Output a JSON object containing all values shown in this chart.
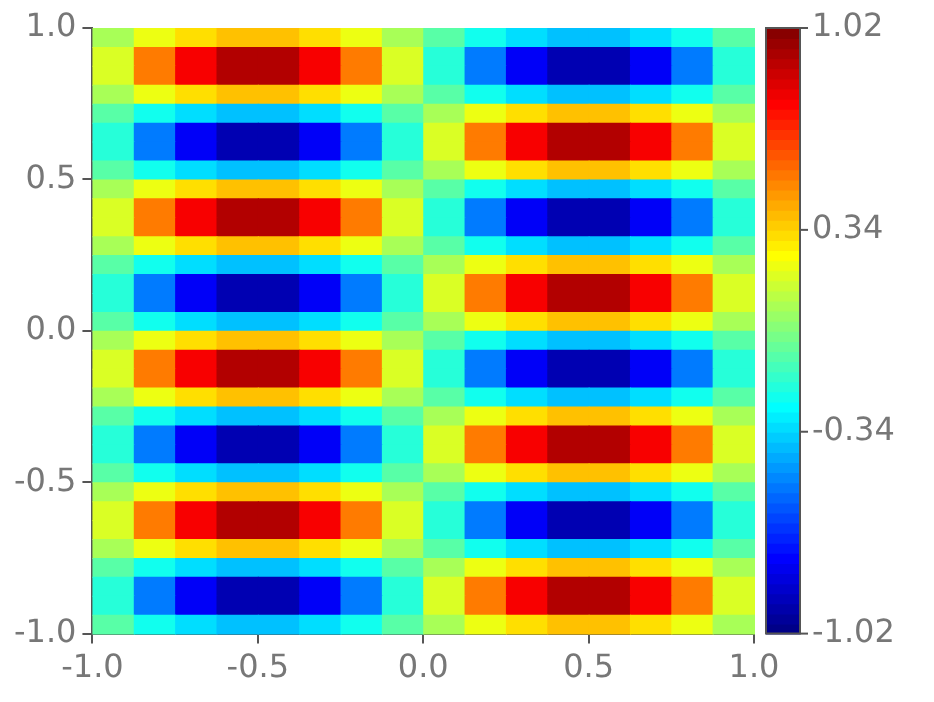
{
  "chart_data": {
    "type": "heatmap",
    "xlim": [
      -1,
      1
    ],
    "ylim": [
      -1,
      1
    ],
    "xticks": [
      {
        "value": -1,
        "label": "-1.0"
      },
      {
        "value": -0.5,
        "label": "-0.5"
      },
      {
        "value": 0,
        "label": "0.0"
      },
      {
        "value": 0.5,
        "label": "0.5"
      },
      {
        "value": 1,
        "label": "1.0"
      }
    ],
    "yticks": [
      {
        "value": -1,
        "label": "-1.0"
      },
      {
        "value": -0.5,
        "label": "-0.5"
      },
      {
        "value": 0,
        "label": "0.0"
      },
      {
        "value": 0.5,
        "label": "0.5"
      },
      {
        "value": 1,
        "label": "1.0"
      }
    ],
    "clim": [
      -1.02,
      1.02
    ],
    "cticks": [
      -1.02,
      -0.34,
      0.34,
      1.02
    ],
    "grid": false,
    "cells": [
      [
        0.08,
        0.22,
        0.32,
        0.38,
        0.38,
        0.32,
        0.22,
        0.08,
        -0.08,
        -0.22,
        -0.32,
        -0.38,
        -0.38,
        -0.32,
        -0.22,
        -0.08
      ],
      [
        0.18,
        0.52,
        0.78,
        0.92,
        0.92,
        0.78,
        0.52,
        0.18,
        -0.18,
        -0.52,
        -0.78,
        -0.92,
        -0.92,
        -0.78,
        -0.52,
        -0.18
      ],
      [
        0.18,
        0.52,
        0.78,
        0.92,
        0.92,
        0.78,
        0.52,
        0.18,
        -0.18,
        -0.52,
        -0.78,
        -0.92,
        -0.92,
        -0.78,
        -0.52,
        -0.18
      ],
      [
        0.08,
        0.22,
        0.32,
        0.38,
        0.38,
        0.32,
        0.22,
        0.08,
        -0.08,
        -0.22,
        -0.32,
        -0.38,
        -0.38,
        -0.32,
        -0.22,
        -0.08
      ],
      [
        -0.08,
        -0.22,
        -0.32,
        -0.38,
        -0.38,
        -0.32,
        -0.22,
        -0.08,
        0.08,
        0.22,
        0.32,
        0.38,
        0.38,
        0.32,
        0.22,
        0.08
      ],
      [
        -0.18,
        -0.52,
        -0.78,
        -0.92,
        -0.92,
        -0.78,
        -0.52,
        -0.18,
        0.18,
        0.52,
        0.78,
        0.92,
        0.92,
        0.78,
        0.52,
        0.18
      ],
      [
        -0.18,
        -0.52,
        -0.78,
        -0.92,
        -0.92,
        -0.78,
        -0.52,
        -0.18,
        0.18,
        0.52,
        0.78,
        0.92,
        0.92,
        0.78,
        0.52,
        0.18
      ],
      [
        -0.08,
        -0.22,
        -0.32,
        -0.38,
        -0.38,
        -0.32,
        -0.22,
        -0.08,
        0.08,
        0.22,
        0.32,
        0.38,
        0.38,
        0.32,
        0.22,
        0.08
      ],
      [
        0.08,
        0.22,
        0.32,
        0.38,
        0.38,
        0.32,
        0.22,
        0.08,
        -0.08,
        -0.22,
        -0.32,
        -0.38,
        -0.38,
        -0.32,
        -0.22,
        -0.08
      ],
      [
        0.18,
        0.52,
        0.78,
        0.92,
        0.92,
        0.78,
        0.52,
        0.18,
        -0.18,
        -0.52,
        -0.78,
        -0.92,
        -0.92,
        -0.78,
        -0.52,
        -0.18
      ],
      [
        0.18,
        0.52,
        0.78,
        0.92,
        0.92,
        0.78,
        0.52,
        0.18,
        -0.18,
        -0.52,
        -0.78,
        -0.92,
        -0.92,
        -0.78,
        -0.52,
        -0.18
      ],
      [
        0.08,
        0.22,
        0.32,
        0.38,
        0.38,
        0.32,
        0.22,
        0.08,
        -0.08,
        -0.22,
        -0.32,
        -0.38,
        -0.38,
        -0.32,
        -0.22,
        -0.08
      ],
      [
        -0.08,
        -0.22,
        -0.32,
        -0.38,
        -0.38,
        -0.32,
        -0.22,
        -0.08,
        0.08,
        0.22,
        0.32,
        0.38,
        0.38,
        0.32,
        0.22,
        0.08
      ],
      [
        -0.18,
        -0.52,
        -0.78,
        -0.92,
        -0.92,
        -0.78,
        -0.52,
        -0.18,
        0.18,
        0.52,
        0.78,
        0.92,
        0.92,
        0.78,
        0.52,
        0.18
      ],
      [
        -0.18,
        -0.52,
        -0.78,
        -0.92,
        -0.92,
        -0.78,
        -0.52,
        -0.18,
        0.18,
        0.52,
        0.78,
        0.92,
        0.92,
        0.78,
        0.52,
        0.18
      ],
      [
        -0.08,
        -0.22,
        -0.32,
        -0.38,
        -0.38,
        -0.32,
        -0.22,
        -0.08,
        0.08,
        0.22,
        0.32,
        0.38,
        0.38,
        0.32,
        0.22,
        0.08
      ],
      [
        0.08,
        0.22,
        0.32,
        0.38,
        0.38,
        0.32,
        0.22,
        0.08,
        -0.08,
        -0.22,
        -0.32,
        -0.38,
        -0.38,
        -0.32,
        -0.22,
        -0.08
      ],
      [
        0.18,
        0.52,
        0.78,
        0.92,
        0.92,
        0.78,
        0.52,
        0.18,
        -0.18,
        -0.52,
        -0.78,
        -0.92,
        -0.92,
        -0.78,
        -0.52,
        -0.18
      ],
      [
        0.18,
        0.52,
        0.78,
        0.92,
        0.92,
        0.78,
        0.52,
        0.18,
        -0.18,
        -0.52,
        -0.78,
        -0.92,
        -0.92,
        -0.78,
        -0.52,
        -0.18
      ],
      [
        0.08,
        0.22,
        0.32,
        0.38,
        0.38,
        0.32,
        0.22,
        0.08,
        -0.08,
        -0.22,
        -0.32,
        -0.38,
        -0.38,
        -0.32,
        -0.22,
        -0.08
      ],
      [
        -0.08,
        -0.22,
        -0.32,
        -0.38,
        -0.38,
        -0.32,
        -0.22,
        -0.08,
        0.08,
        0.22,
        0.32,
        0.38,
        0.38,
        0.32,
        0.22,
        0.08
      ],
      [
        -0.18,
        -0.52,
        -0.78,
        -0.92,
        -0.92,
        -0.78,
        -0.52,
        -0.18,
        0.18,
        0.52,
        0.78,
        0.92,
        0.92,
        0.78,
        0.52,
        0.18
      ],
      [
        -0.18,
        -0.52,
        -0.78,
        -0.92,
        -0.92,
        -0.78,
        -0.52,
        -0.18,
        0.18,
        0.52,
        0.78,
        0.92,
        0.92,
        0.78,
        0.52,
        0.18
      ],
      [
        -0.08,
        -0.22,
        -0.32,
        -0.38,
        -0.38,
        -0.32,
        -0.22,
        -0.08,
        0.08,
        0.22,
        0.32,
        0.38,
        0.38,
        0.32,
        0.22,
        0.08
      ],
      [
        0.08,
        0.22,
        0.32,
        0.38,
        0.38,
        0.32,
        0.22,
        0.08,
        -0.08,
        -0.22,
        -0.32,
        -0.38,
        -0.38,
        -0.32,
        -0.22,
        -0.08
      ],
      [
        0.18,
        0.52,
        0.78,
        0.92,
        0.92,
        0.78,
        0.52,
        0.18,
        -0.18,
        -0.52,
        -0.78,
        -0.92,
        -0.92,
        -0.78,
        -0.52,
        -0.18
      ],
      [
        0.18,
        0.52,
        0.78,
        0.92,
        0.92,
        0.78,
        0.52,
        0.18,
        -0.18,
        -0.52,
        -0.78,
        -0.92,
        -0.92,
        -0.78,
        -0.52,
        -0.18
      ],
      [
        0.08,
        0.22,
        0.32,
        0.38,
        0.38,
        0.32,
        0.22,
        0.08,
        -0.08,
        -0.22,
        -0.32,
        -0.38,
        -0.38,
        -0.32,
        -0.22,
        -0.08
      ],
      [
        -0.08,
        -0.22,
        -0.32,
        -0.38,
        -0.38,
        -0.32,
        -0.22,
        -0.08,
        0.08,
        0.22,
        0.32,
        0.38,
        0.38,
        0.32,
        0.22,
        0.08
      ],
      [
        -0.18,
        -0.52,
        -0.78,
        -0.92,
        -0.92,
        -0.78,
        -0.52,
        -0.18,
        0.18,
        0.52,
        0.78,
        0.92,
        0.92,
        0.78,
        0.52,
        0.18
      ],
      [
        -0.18,
        -0.52,
        -0.78,
        -0.92,
        -0.92,
        -0.78,
        -0.52,
        -0.18,
        0.18,
        0.52,
        0.78,
        0.92,
        0.92,
        0.78,
        0.52,
        0.18
      ],
      [
        -0.08,
        -0.22,
        -0.32,
        -0.38,
        -0.38,
        -0.32,
        -0.22,
        -0.08,
        0.08,
        0.22,
        0.32,
        0.38,
        0.38,
        0.32,
        0.22,
        0.08
      ]
    ]
  }
}
